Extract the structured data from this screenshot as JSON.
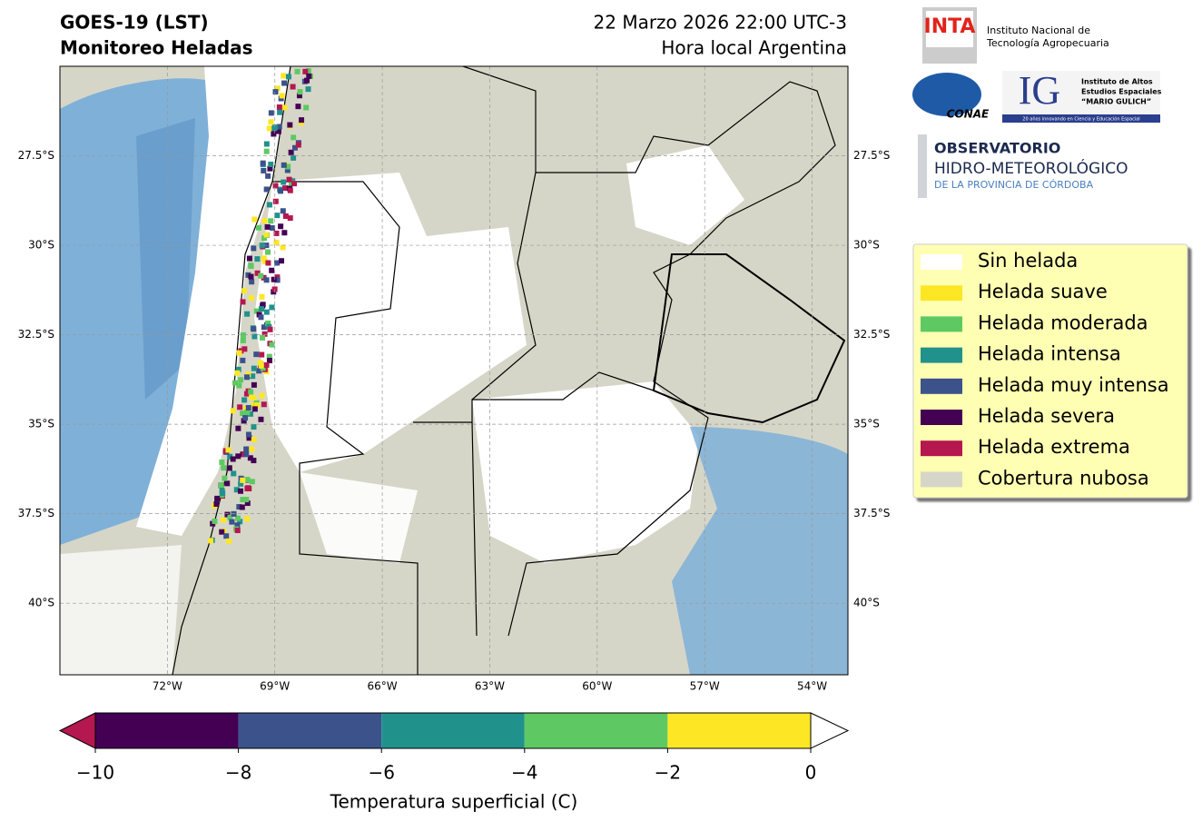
{
  "header": {
    "title_1": "GOES-19 (LST)",
    "title_2": "Monitoreo Heladas",
    "date": "22 Marzo 2026 22:00 UTC-3",
    "local": "Hora local Argentina"
  },
  "logos": {
    "inta": "INTA",
    "inta_name": [
      "Instituto Nacional de",
      "Tecnología Agropecuaria"
    ],
    "conae": "CONAE",
    "ig": "IG",
    "ig_name": [
      "Instituto de Altos",
      "Estudios Espaciales",
      "“MARIO GULICH”"
    ],
    "ig_tagline": "20 años innovando en Ciencia y Educación Espacial",
    "observatorio": [
      "OBSERVATORIO",
      "HIDRO-METEOROLÓGICO",
      "DE LA PROVINCIA DE CÓRDOBA"
    ]
  },
  "map": {
    "lonlim": [
      -75,
      -53
    ],
    "latlim": [
      -42,
      -25
    ],
    "lonticks": [
      {
        "value": -72,
        "label": "72°W"
      },
      {
        "value": -69,
        "label": "69°W"
      },
      {
        "value": -66,
        "label": "66°W"
      },
      {
        "value": -63,
        "label": "63°W"
      },
      {
        "value": -60,
        "label": "60°W"
      },
      {
        "value": -57,
        "label": "57°W"
      },
      {
        "value": -54,
        "label": "54°W"
      }
    ],
    "latticks": [
      {
        "value": -27.5,
        "label": "27.5°S"
      },
      {
        "value": -30,
        "label": "30°S"
      },
      {
        "value": -32.5,
        "label": "32.5°S"
      },
      {
        "value": -35,
        "label": "35°S"
      },
      {
        "value": -37.5,
        "label": "37.5°S"
      },
      {
        "value": -40,
        "label": "40°S"
      }
    ],
    "grid": true
  },
  "legend": [
    {
      "name": "Sin helada",
      "color": "#ffffff"
    },
    {
      "name": "Helada suave",
      "color": "#fde725"
    },
    {
      "name": "Helada moderada",
      "color": "#5ec962"
    },
    {
      "name": "Helada intensa",
      "color": "#21918c"
    },
    {
      "name": "Helada muy intensa",
      "color": "#3b528b"
    },
    {
      "name": "Helada severa",
      "color": "#440154"
    },
    {
      "name": "Helada extrema",
      "color": "#b5174f"
    },
    {
      "name": "Cobertura nubosa",
      "color": "#d6d6c8"
    }
  ],
  "colorbar": {
    "label": "Temperatura superficial (C)",
    "ticks": [
      {
        "value": -10,
        "label": "−10"
      },
      {
        "value": -8,
        "label": "−8"
      },
      {
        "value": -6,
        "label": "−6"
      },
      {
        "value": -4,
        "label": "−4"
      },
      {
        "value": -2,
        "label": "−2"
      },
      0
    ],
    "colors": [
      "#440154",
      "#3b528b",
      "#21918c",
      "#5ec962",
      "#fde725"
    ],
    "under_color": "#b5174f",
    "over_color": "#ffffff"
  }
}
